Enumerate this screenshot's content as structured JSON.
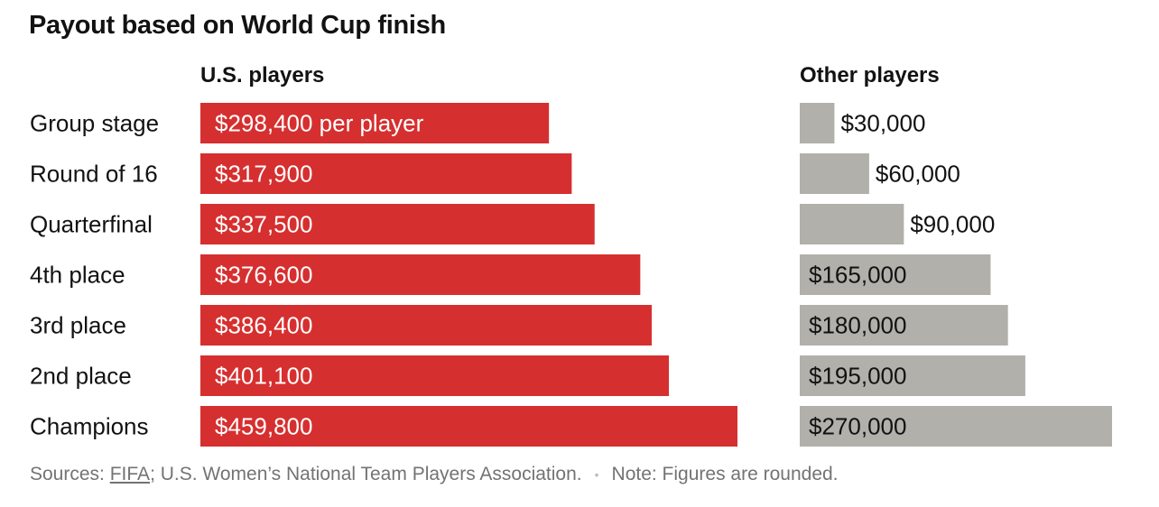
{
  "chart_data": {
    "type": "bar",
    "title": "Payout based on World Cup finish",
    "categories": [
      "Group stage",
      "Round of 16",
      "Quarterfinal",
      "4th place",
      "3rd place",
      "2nd place",
      "Champions"
    ],
    "series": [
      {
        "name": "U.S. players",
        "values": [
          298400,
          317900,
          337500,
          376600,
          386400,
          401100,
          459800
        ],
        "labels": [
          "$298,400 per player",
          "$317,900",
          "$337,500",
          "$376,600",
          "$386,400",
          "$401,100",
          "$459,800"
        ],
        "color": "#d62f2f"
      },
      {
        "name": "Other players",
        "values": [
          30000,
          60000,
          90000,
          165000,
          180000,
          195000,
          270000
        ],
        "labels": [
          "$30,000",
          "$60,000",
          "$90,000",
          "$165,000",
          "$180,000",
          "$195,000",
          "$270,000"
        ],
        "color": "#b1b0ab"
      }
    ],
    "orientation": "horizontal"
  },
  "footer": {
    "sources_prefix": "Sources: ",
    "sources_link": "FIFA",
    "sources_rest": "; U.S. Women’s National Team Players Association.",
    "separator": "•",
    "note": "Note: Figures are rounded."
  }
}
